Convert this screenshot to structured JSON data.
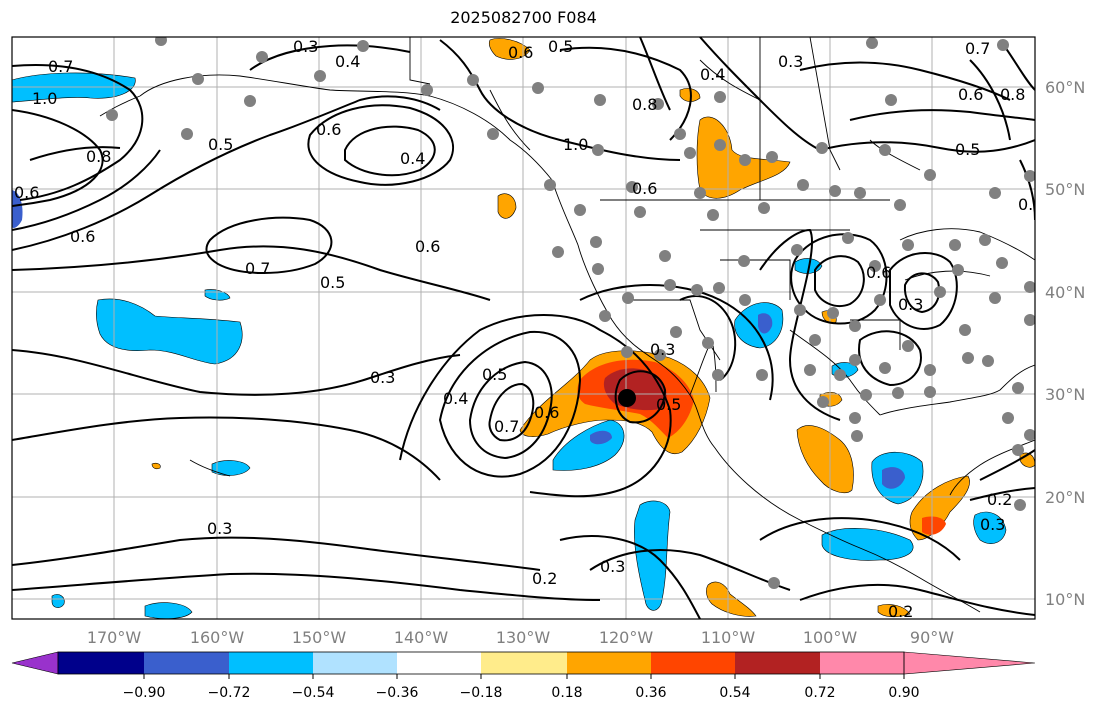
{
  "title": "2025082700 F084",
  "lat_labels": [
    "60°N",
    "50°N",
    "40°N",
    "30°N",
    "20°N",
    "10°N"
  ],
  "lon_labels": [
    "170°W",
    "160°W",
    "150°W",
    "140°W",
    "130°W",
    "120°W",
    "110°W",
    "100°W",
    "90°W"
  ],
  "colorbar": {
    "tick_labels": [
      "−0.90",
      "−0.72",
      "−0.54",
      "−0.36",
      "−0.18",
      "0.18",
      "0.36",
      "0.54",
      "0.72",
      "0.90"
    ],
    "colors": [
      "#9932CC",
      "#00008B",
      "#3A5FCD",
      "#00BFFF",
      "#B0E2FF",
      "#FFFFFF",
      "#FFEC8B",
      "#FFA500",
      "#FF4500",
      "#B22222",
      "#FF88AA"
    ]
  },
  "contour_labels": [
    "0.3",
    "0.4",
    "0.5",
    "0.6",
    "0.7",
    "1.0",
    "0.8",
    "0.6",
    "0.5",
    "0.4",
    "0.6",
    "0.7",
    "0.6",
    "0.5",
    "0.3",
    "0.3",
    "0.2",
    "0.2",
    "0.3",
    "0.4",
    "0.5",
    "0.7",
    "0.6",
    "0.3",
    "0.5",
    "0.6",
    "1.0",
    "0.8",
    "0.4",
    "0.3",
    "0.5",
    "0.6",
    "0.7",
    "0.6",
    "0.3",
    "0.6",
    "0.8",
    "0.3",
    "0.2",
    "0.6"
  ],
  "colors": {
    "lightblue": "#00BFFF",
    "blue": "#3A5FCD",
    "orange": "#FFA500",
    "red_orange": "#FF4500",
    "dark_red": "#B22222",
    "station": "#808080",
    "grid": "#b0b0b0"
  }
}
